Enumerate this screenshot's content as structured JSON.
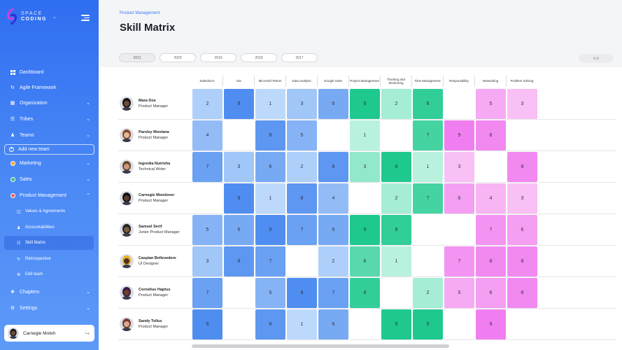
{
  "sidebar": {
    "logo": {
      "line1": "SPACE",
      "line2": "CODING"
    },
    "nav": [
      {
        "label": "Dashboard",
        "icon": "grid-icon"
      },
      {
        "label": "Agile Framework",
        "icon": "refresh-icon"
      },
      {
        "label": "Organization",
        "icon": "building-icon",
        "chevron": "down"
      },
      {
        "label": "Tribes",
        "icon": "layers-icon",
        "chevron": "down"
      },
      {
        "label": "Teams",
        "icon": "users-icon",
        "chevron": "down"
      }
    ],
    "add_team_label": "Add new team",
    "teams": [
      {
        "label": "Marketing",
        "color": "#f5a623",
        "chevron": "down"
      },
      {
        "label": "Sales",
        "color": "#2ec27e",
        "chevron": "down"
      },
      {
        "label": "Product Management",
        "color": "#f25c5c",
        "chevron": "up"
      }
    ],
    "sub_items": [
      {
        "label": "Values & Agreements",
        "icon": "book-icon"
      },
      {
        "label": "Accountabilities",
        "icon": "person-icon"
      },
      {
        "label": "Skill Matrix",
        "icon": "matrix-icon",
        "active": true
      },
      {
        "label": "Retrospective",
        "icon": "retro-icon"
      },
      {
        "label": "Edit team",
        "icon": "edit-icon"
      }
    ],
    "bottom_nav": [
      {
        "label": "Chapters",
        "icon": "chapters-icon",
        "chevron": "down"
      },
      {
        "label": "Settings",
        "icon": "gear-icon",
        "chevron": "down"
      }
    ],
    "user": {
      "name": "Carnegie Moteh"
    }
  },
  "main": {
    "breadcrumb": "Product Management",
    "title": "Skill Matrix",
    "years": [
      "2021",
      "2020",
      "2019",
      "2018",
      "2017"
    ],
    "active_year": "2021",
    "edit_label": "Edit",
    "columns": [
      "Salesforce",
      "Jira",
      "Microsoft Teams",
      "Data Analysis",
      "Google Suite",
      "Project Management",
      "Tracking and Monitoring",
      "Time Management",
      "Responsibility",
      "Networking",
      "Problem Solving"
    ],
    "people": [
      {
        "name": "Mara Doe",
        "role": "Product Manager",
        "skin": "#6b4a3a",
        "hair": "#1a1212",
        "scores": [
          2,
          9,
          1,
          3,
          6,
          9,
          2,
          8,
          null,
          5,
          3
        ]
      },
      {
        "name": "Parsley Montana",
        "role": "Product Manager",
        "skin": "#e0b89a",
        "hair": "#8a4a2a",
        "scores": [
          4,
          null,
          8,
          5,
          null,
          1,
          null,
          7,
          9,
          8,
          null
        ]
      },
      {
        "name": "Ingredia Nutrisha",
        "role": "Technical Writer",
        "skin": "#c99a7a",
        "hair": "#6a4a2a",
        "scores": [
          7,
          3,
          6,
          2,
          8,
          3,
          9,
          1,
          3,
          null,
          8
        ]
      },
      {
        "name": "Carnegie Mondover",
        "role": "Product Manager",
        "skin": "#5a3a2a",
        "hair": "#111",
        "scores": [
          null,
          9,
          1,
          8,
          4,
          null,
          2,
          7,
          6,
          4,
          3
        ]
      },
      {
        "name": "Samuel Serif",
        "role": "Junior Product Manager",
        "skin": "#7a5a40",
        "hair": "#222",
        "scores": [
          5,
          6,
          9,
          7,
          6,
          9,
          8,
          null,
          null,
          7,
          6
        ]
      },
      {
        "name": "Caspian Bellevedere",
        "role": "UI Designer",
        "skin": "#4a3020",
        "hair": "#e8b020",
        "scores": [
          3,
          8,
          7,
          null,
          2,
          6,
          1,
          null,
          7,
          8,
          8
        ]
      },
      {
        "name": "Cornelius Haptus",
        "role": "Product Manager",
        "skin": "#6a4030",
        "hair": "#3a1a4a",
        "scores": [
          7,
          null,
          5,
          9,
          7,
          8,
          null,
          2,
          5,
          6,
          8
        ]
      },
      {
        "name": "Sandy Tellus",
        "role": "Product Manager",
        "skin": "#d8a890",
        "hair": "#7a3a2a",
        "scores": [
          9,
          null,
          8,
          1,
          6,
          null,
          9,
          9,
          null,
          9,
          null
        ]
      }
    ],
    "column_colors": {
      "blue": {
        "min": "#bcd8fb",
        "max": "#4f8ef0"
      },
      "green": {
        "min": "#b8f2df",
        "max": "#1fc98e"
      },
      "pink": {
        "min": "#fbd6f6",
        "max": "#f07ef0"
      }
    }
  }
}
